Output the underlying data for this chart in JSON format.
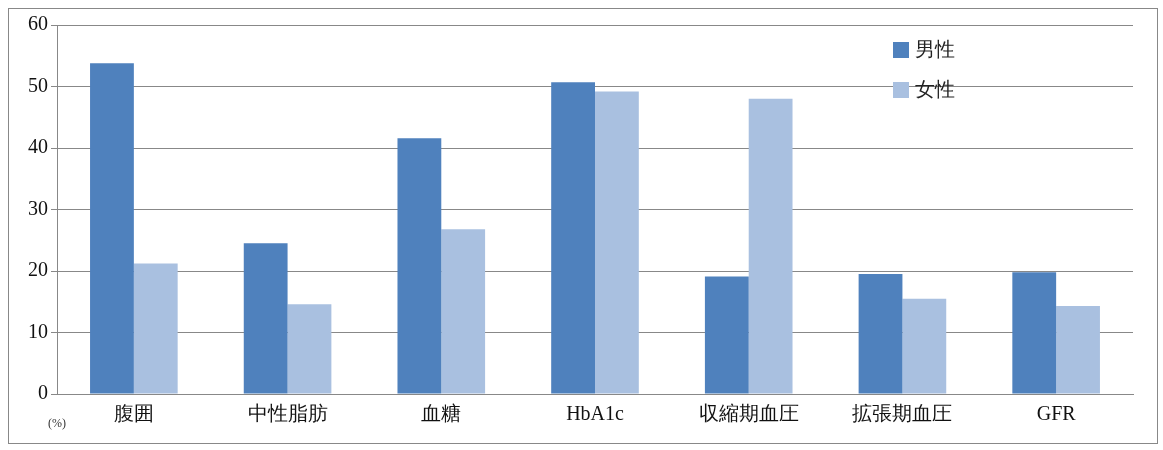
{
  "chart_data": {
    "type": "bar",
    "categories": [
      "腹囲",
      "中性脂肪",
      "血糖",
      "HbA1c",
      "収縮期血圧",
      "拡張期血圧",
      "GFR"
    ],
    "series": [
      {
        "name": "男性",
        "color": "#4f81bd",
        "values": [
          53.8,
          24.5,
          41.6,
          50.7,
          19.1,
          19.5,
          19.8
        ]
      },
      {
        "name": "女性",
        "color": "#a9c0e0",
        "values": [
          21.2,
          14.6,
          26.8,
          49.2,
          48.0,
          15.5,
          14.3
        ]
      }
    ],
    "ylim": [
      0,
      60
    ],
    "yticks": [
      0,
      10,
      20,
      30,
      40,
      50,
      60
    ],
    "grid": "y",
    "legend": "top right",
    "annotations": [
      "(%)"
    ]
  }
}
